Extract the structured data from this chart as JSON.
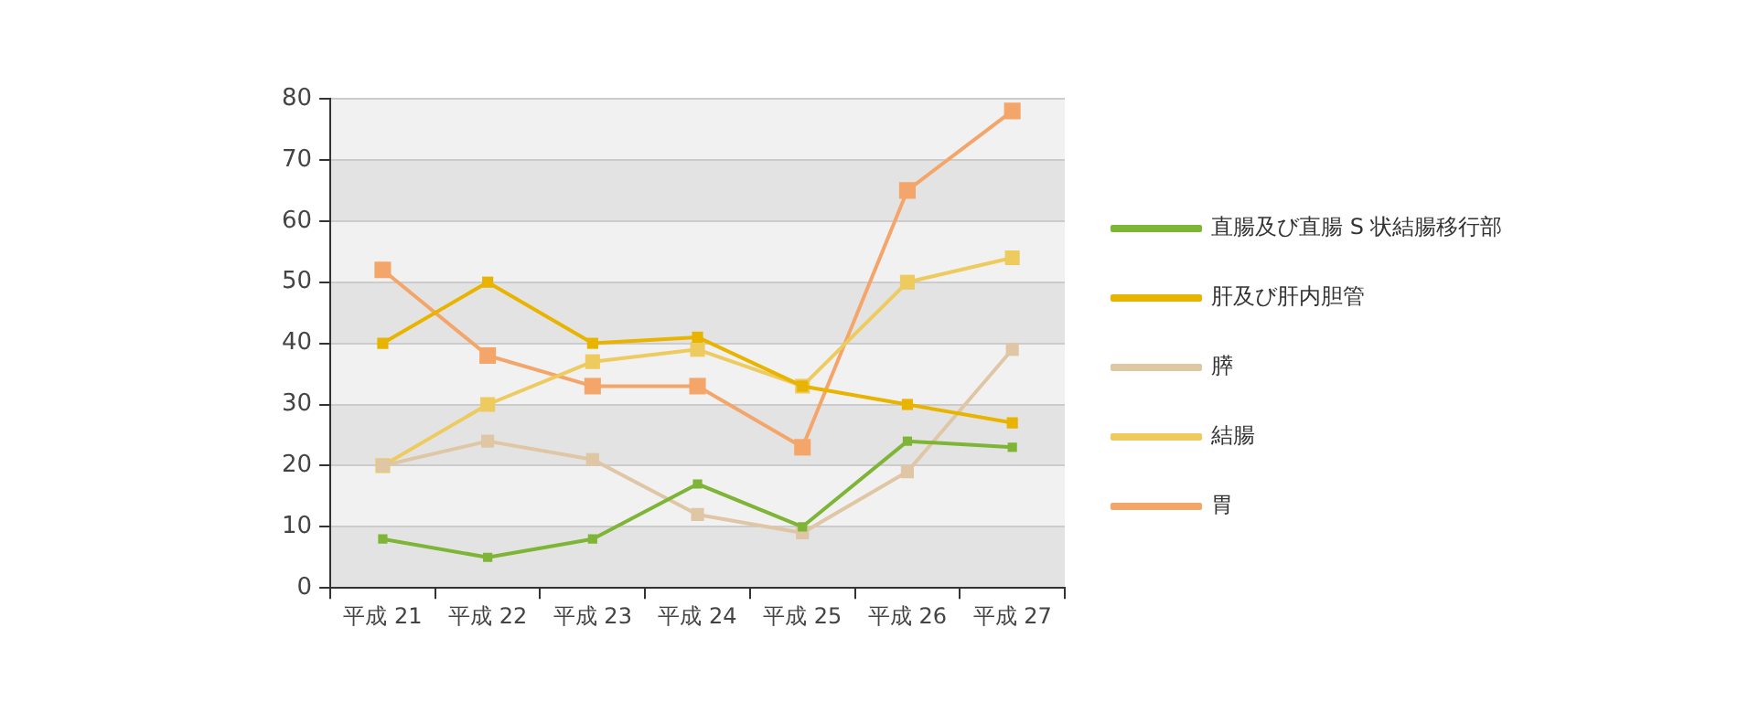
{
  "chart_data": {
    "type": "line",
    "categories": [
      "平成 21",
      "平成 22",
      "平成 23",
      "平成 24",
      "平成 25",
      "平成 26",
      "平成 27"
    ],
    "series": [
      {
        "name": "直腸及び直腸 S 状結腸移行部",
        "color": "#7fb536",
        "values": [
          8,
          5,
          8,
          17,
          10,
          24,
          23
        ]
      },
      {
        "name": "肝及び肝内胆管",
        "color": "#e8b400",
        "values": [
          40,
          50,
          40,
          41,
          33,
          30,
          27
        ]
      },
      {
        "name": "膵",
        "color": "#dfc6a5",
        "values": [
          20,
          24,
          21,
          12,
          9,
          19,
          39
        ]
      },
      {
        "name": "結腸",
        "color": "#edcb5e",
        "values": [
          20,
          30,
          37,
          39,
          33,
          50,
          54
        ]
      },
      {
        "name": "胃",
        "color": "#f4a66a",
        "values": [
          52,
          38,
          33,
          33,
          23,
          65,
          78
        ]
      }
    ],
    "ylim": [
      0,
      80
    ],
    "yticks": [
      0,
      10,
      20,
      30,
      40,
      50,
      60,
      70,
      80
    ],
    "grid": "y",
    "legend": "right",
    "marker": "square",
    "line_style": "solid"
  }
}
